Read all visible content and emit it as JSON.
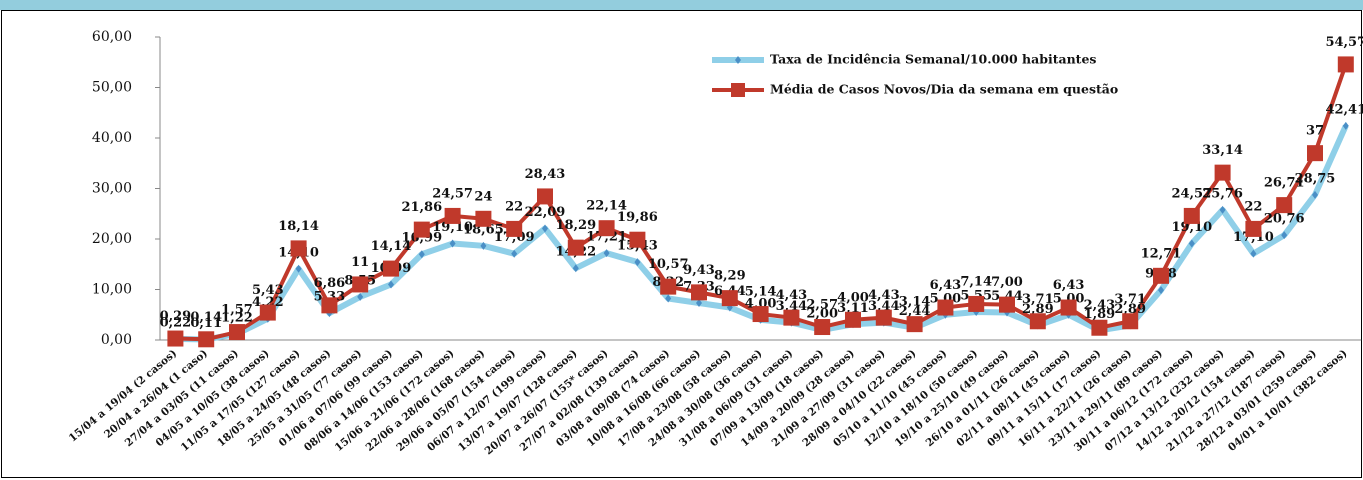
{
  "chart_data": {
    "type": "line",
    "categories": [
      "15/04 a 19/04 (2 casos)",
      "20/04 a 26/04 (1 caso)",
      "27/04 a 03/05 (11 casos)",
      "04/05 a 10/05 (38 casos)",
      "11/05 a 17/05 (127 casos)",
      "18/05 a 24/05 (48 casos)",
      "25/05 a 31/05 (77 casos)",
      "01/06 a 07/06 (99 casos)",
      "08/06 a 14/06 (153 casos)",
      "15/06 a 21/06 (172 casos)",
      "22/06 a 28/06 (168 casos)",
      "29/06 a 05/07 (154 casos)",
      "06/07 a 12/07 (199 casos)",
      "13/07 a 19/07 (128 casos)",
      "20/07 a 26/07 (155* casos)",
      "27/07 a 02/08 (139 casos)",
      "03/08 a 09/08 (74 casos)",
      "10/08 a 16/08 (66 casos)",
      "17/08 a 23/08 (58 casos)",
      "24/08 a 30/08 (36 casos)",
      "31/08 a 06/09 (31 casos)",
      "07/09 a 13/09 (18 casos)",
      "14/09 a 20/09 (28 casos)",
      "21/09 a 27/09 (31 casos)",
      "28/09 a 04/10 (22 casos)",
      "05/10 a 11/10 (45 casos)",
      "12/10 a 18/10 (50 casos)",
      "19/10 a 25/10 (49 casos)",
      "26/10 a 01/11 (26 casos)",
      "02/11 a 08/11 (45 casos)",
      "09/11 a 15/11 (17 casos)",
      "16/11 a 22/11 (26 casos)",
      "23/11 a 29/11 (89 casos)",
      "30/11 a 06/12 (172 casos)",
      "07/12 a 13/12 (232 casos)",
      "14/12 a 20/12 (154 casos)",
      "21/12 a 27/12 (187 casos)",
      "28/12 a 03/01 (259 casos)",
      "04/01 a 10/01 (382 casos)"
    ],
    "series": [
      {
        "name": "Taxa de Incidência Semanal/10.000 habitantes",
        "color": "#8fcfe8",
        "marker_color": "#4a8fc6",
        "values": [
          0.22,
          0.11,
          1.22,
          4.22,
          14.1,
          5.33,
          8.55,
          10.99,
          16.99,
          19.1,
          18.65,
          17.09,
          22.09,
          14.22,
          17.21,
          15.43,
          8.22,
          7.33,
          6.44,
          4.0,
          3.44,
          2.0,
          3.11,
          3.44,
          2.44,
          5.0,
          5.55,
          5.44,
          2.89,
          5.0,
          1.89,
          2.89,
          9.88,
          19.1,
          25.76,
          17.1,
          20.76,
          28.75,
          42.41
        ],
        "value_labels": [
          "0,22",
          "0,11",
          "1,22",
          "4,22",
          "14,10",
          "5,33",
          "8,55",
          "10,99",
          "16,99",
          "19,10",
          "18,65",
          "17,09",
          "22,09",
          "14,22",
          "17,21",
          "15,43",
          "8,22",
          "7,33",
          "6,44",
          "4,00",
          "3,44",
          "2,00",
          "3,11",
          "3,44",
          "2,44",
          "5,00",
          "5,55",
          "5,44",
          "2,89",
          "5,00",
          "1,89",
          "2,89",
          "9,88",
          "19,10",
          "25,76",
          "17,10",
          "20,76",
          "28,75",
          "42,41"
        ]
      },
      {
        "name": "Média de Casos Novos/Dia da semana em questão",
        "color": "#c0392b",
        "marker_color": "#c0392b",
        "values": [
          0.29,
          0.14,
          1.57,
          5.43,
          18.14,
          6.86,
          11,
          14.14,
          21.86,
          24.57,
          24,
          22,
          28.43,
          18.29,
          22.14,
          19.86,
          10.57,
          9.43,
          8.29,
          5.14,
          4.43,
          2.57,
          4.0,
          4.43,
          3.14,
          6.43,
          7.14,
          7.0,
          3.71,
          6.43,
          2.43,
          3.71,
          12.71,
          24.57,
          33.14,
          22,
          26.71,
          37,
          54.57
        ],
        "value_labels": [
          "0,29",
          "0,14",
          "1,57",
          "5,43",
          "18,14",
          "6,86",
          "11",
          "14,14",
          "21,86",
          "24,57",
          "24",
          "22",
          "28,43",
          "18,29",
          "22,14",
          "19,86",
          "10,57",
          "9,43",
          "8,29",
          "5,14",
          "4,43",
          "2,57",
          "4,00",
          "4,43",
          "3,14",
          "6,43",
          "7,14",
          "7,00",
          "3,71",
          "6,43",
          "2,43",
          "3,71",
          "12,71",
          "24,57",
          "33,14",
          "22",
          "26,71",
          "37",
          "54,57"
        ]
      }
    ],
    "ylim": [
      0,
      60
    ],
    "yticks": [
      {
        "value": 0,
        "label": "0,00"
      },
      {
        "value": 10,
        "label": "10,00"
      },
      {
        "value": 20,
        "label": "20,00"
      },
      {
        "value": 30,
        "label": "30,00"
      },
      {
        "value": 40,
        "label": "40,00"
      },
      {
        "value": 50,
        "label": "50,00"
      },
      {
        "value": 60,
        "label": "60,00"
      }
    ],
    "grid": false
  }
}
